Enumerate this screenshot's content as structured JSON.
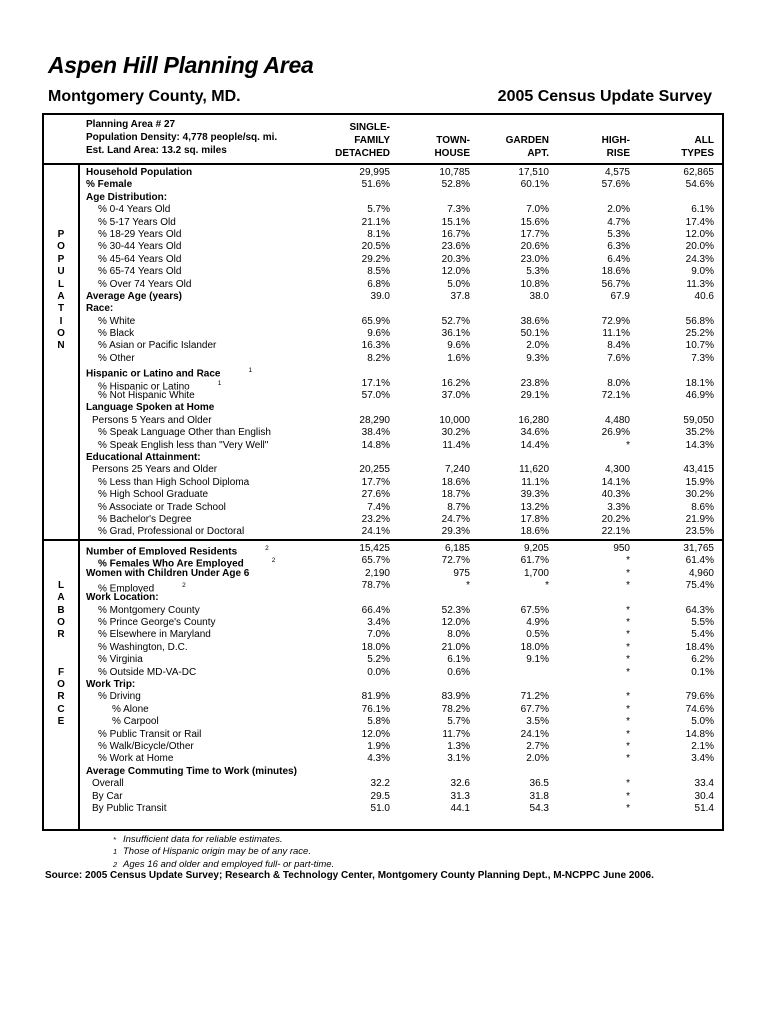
{
  "page": {
    "title": "Aspen Hill Planning Area",
    "region": "Montgomery County, MD.",
    "survey": "2005 Census Update Survey"
  },
  "table": {
    "info": [
      "Planning Area # 27",
      "Population Density: 4,778 people/sq. mi.",
      "Est. Land Area: 13.2 sq. miles"
    ],
    "columns": [
      "SINGLE-\nFAMILY\nDETACHED",
      "TOWN-\nHOUSE",
      "GARDEN\nAPT.",
      "HIGH-\nRISE",
      "ALL\nTYPES"
    ],
    "sections": [
      {
        "name": "POPULATION",
        "rows": [
          {
            "letter": "",
            "label": "Household Population",
            "b": true,
            "ind": 0,
            "sup": "",
            "values": [
              "29,995",
              "10,785",
              "17,510",
              "4,575",
              "62,865"
            ]
          },
          {
            "letter": "",
            "label": "% Female",
            "b": true,
            "ind": 0,
            "sup": "",
            "values": [
              "51.6%",
              "52.8%",
              "60.1%",
              "57.6%",
              "54.6%"
            ]
          },
          {
            "letter": "",
            "label": "Age Distribution:",
            "b": true,
            "ind": 0,
            "sup": "",
            "values": [
              "",
              "",
              "",
              "",
              ""
            ]
          },
          {
            "letter": "",
            "label": "% 0-4 Years Old",
            "b": false,
            "ind": 2,
            "sup": "",
            "values": [
              "5.7%",
              "7.3%",
              "7.0%",
              "2.0%",
              "6.1%"
            ]
          },
          {
            "letter": "",
            "label": "% 5-17 Years Old",
            "b": false,
            "ind": 2,
            "sup": "",
            "values": [
              "21.1%",
              "15.1%",
              "15.6%",
              "4.7%",
              "17.4%"
            ]
          },
          {
            "letter": "P",
            "label": "% 18-29 Years Old",
            "b": false,
            "ind": 2,
            "sup": "",
            "values": [
              "8.1%",
              "16.7%",
              "17.7%",
              "5.3%",
              "12.0%"
            ]
          },
          {
            "letter": "O",
            "label": "% 30-44 Years Old",
            "b": false,
            "ind": 2,
            "sup": "",
            "values": [
              "20.5%",
              "23.6%",
              "20.6%",
              "6.3%",
              "20.0%"
            ]
          },
          {
            "letter": "P",
            "label": "% 45-64 Years Old",
            "b": false,
            "ind": 2,
            "sup": "",
            "values": [
              "29.2%",
              "20.3%",
              "23.0%",
              "6.4%",
              "24.3%"
            ]
          },
          {
            "letter": "U",
            "label": "% 65-74 Years Old",
            "b": false,
            "ind": 2,
            "sup": "",
            "values": [
              "8.5%",
              "12.0%",
              "5.3%",
              "18.6%",
              "9.0%"
            ]
          },
          {
            "letter": "L",
            "label": "% Over 74 Years Old",
            "b": false,
            "ind": 2,
            "sup": "",
            "values": [
              "6.8%",
              "5.0%",
              "10.8%",
              "56.7%",
              "11.3%"
            ]
          },
          {
            "letter": "A",
            "label": "Average Age (years)",
            "b": true,
            "ind": 0,
            "sup": "",
            "values": [
              "39.0",
              "37.8",
              "38.0",
              "67.9",
              "40.6"
            ]
          },
          {
            "letter": "T",
            "label": "Race:",
            "b": true,
            "ind": 0,
            "sup": "",
            "values": [
              "",
              "",
              "",
              "",
              ""
            ]
          },
          {
            "letter": "I",
            "label": "% White",
            "b": false,
            "ind": 2,
            "sup": "",
            "values": [
              "65.9%",
              "52.7%",
              "38.6%",
              "72.9%",
              "56.8%"
            ]
          },
          {
            "letter": "O",
            "label": "% Black",
            "b": false,
            "ind": 2,
            "sup": "",
            "values": [
              "9.6%",
              "36.1%",
              "50.1%",
              "11.1%",
              "25.2%"
            ]
          },
          {
            "letter": "N",
            "label": "% Asian or Pacific Islander",
            "b": false,
            "ind": 2,
            "sup": "",
            "values": [
              "16.3%",
              "9.6%",
              "2.0%",
              "8.4%",
              "10.7%"
            ]
          },
          {
            "letter": "",
            "label": "% Other",
            "b": false,
            "ind": 2,
            "sup": "",
            "values": [
              "8.2%",
              "1.6%",
              "9.3%",
              "7.6%",
              "7.3%"
            ]
          },
          {
            "letter": "",
            "label": "Hispanic or Latino and Race",
            "b": true,
            "ind": 0,
            "sup": "1",
            "values": [
              "",
              "",
              "",
              "",
              ""
            ]
          },
          {
            "letter": "",
            "label": "% Hispanic or Latino",
            "b": false,
            "ind": 2,
            "sup": "1",
            "values": [
              "17.1%",
              "16.2%",
              "23.8%",
              "8.0%",
              "18.1%"
            ]
          },
          {
            "letter": "",
            "label": "% Not Hispanic White",
            "b": false,
            "ind": 2,
            "sup": "",
            "values": [
              "57.0%",
              "37.0%",
              "29.1%",
              "72.1%",
              "46.9%"
            ]
          },
          {
            "letter": "",
            "label": "Language Spoken at Home",
            "b": true,
            "ind": 0,
            "sup": "",
            "values": [
              "",
              "",
              "",
              "",
              ""
            ]
          },
          {
            "letter": "",
            "label": "Persons 5 Years and Older",
            "b": false,
            "ind": 1,
            "sup": "",
            "values": [
              "28,290",
              "10,000",
              "16,280",
              "4,480",
              "59,050"
            ]
          },
          {
            "letter": "",
            "label": "% Speak Language Other than English",
            "b": false,
            "ind": 2,
            "sup": "",
            "values": [
              "38.4%",
              "30.2%",
              "34.6%",
              "26.9%",
              "35.2%"
            ]
          },
          {
            "letter": "",
            "label": "% Speak English less than \"Very Well\"",
            "b": false,
            "ind": 2,
            "sup": "",
            "values": [
              "14.8%",
              "11.4%",
              "14.4%",
              "*",
              "14.3%"
            ]
          },
          {
            "letter": "",
            "label": "Educational Attainment:",
            "b": true,
            "ind": 0,
            "sup": "",
            "values": [
              "",
              "",
              "",
              "",
              ""
            ]
          },
          {
            "letter": "",
            "label": "Persons 25 Years and Older",
            "b": false,
            "ind": 1,
            "sup": "",
            "values": [
              "20,255",
              "7,240",
              "11,620",
              "4,300",
              "43,415"
            ]
          },
          {
            "letter": "",
            "label": "% Less than High School Diploma",
            "b": false,
            "ind": 2,
            "sup": "",
            "values": [
              "17.7%",
              "18.6%",
              "11.1%",
              "14.1%",
              "15.9%"
            ]
          },
          {
            "letter": "",
            "label": "% High School Graduate",
            "b": false,
            "ind": 2,
            "sup": "",
            "values": [
              "27.6%",
              "18.7%",
              "39.3%",
              "40.3%",
              "30.2%"
            ]
          },
          {
            "letter": "",
            "label": "% Associate or Trade School",
            "b": false,
            "ind": 2,
            "sup": "",
            "values": [
              "7.4%",
              "8.7%",
              "13.2%",
              "3.3%",
              "8.6%"
            ]
          },
          {
            "letter": "",
            "label": "% Bachelor's Degree",
            "b": false,
            "ind": 2,
            "sup": "",
            "values": [
              "23.2%",
              "24.7%",
              "17.8%",
              "20.2%",
              "21.9%"
            ]
          },
          {
            "letter": "",
            "label": "% Grad, Professional or Doctoral",
            "b": false,
            "ind": 2,
            "sup": "",
            "values": [
              "24.1%",
              "29.3%",
              "18.6%",
              "22.1%",
              "23.5%"
            ]
          }
        ]
      },
      {
        "name": "LABOR FORCE",
        "rows": [
          {
            "letter": "",
            "label": "Number of Employed Residents",
            "b": true,
            "ind": 0,
            "sup": "2",
            "values": [
              "15,425",
              "6,185",
              "9,205",
              "950",
              "31,765"
            ]
          },
          {
            "letter": "",
            "label": "% Females Who Are Employed",
            "b": true,
            "ind": 2,
            "sup": "2",
            "values": [
              "65.7%",
              "72.7%",
              "61.7%",
              "*",
              "61.4%"
            ]
          },
          {
            "letter": "",
            "label": "Women with Children Under Age 6",
            "b": true,
            "ind": 0,
            "sup": "",
            "values": [
              "2,190",
              "975",
              "1,700",
              "*",
              "4,960"
            ]
          },
          {
            "letter": "L",
            "label": "% Employed",
            "b": false,
            "ind": 2,
            "sup": "2",
            "values": [
              "78.7%",
              "*",
              "*",
              "*",
              "75.4%"
            ]
          },
          {
            "letter": "A",
            "label": "Work Location:",
            "b": true,
            "ind": 0,
            "sup": "",
            "values": [
              "",
              "",
              "",
              "",
              ""
            ]
          },
          {
            "letter": "B",
            "label": "% Montgomery County",
            "b": false,
            "ind": 2,
            "sup": "",
            "values": [
              "66.4%",
              "52.3%",
              "67.5%",
              "*",
              "64.3%"
            ]
          },
          {
            "letter": "O",
            "label": "% Prince George's County",
            "b": false,
            "ind": 2,
            "sup": "",
            "values": [
              "3.4%",
              "12.0%",
              "4.9%",
              "*",
              "5.5%"
            ]
          },
          {
            "letter": "R",
            "label": "% Elsewhere in Maryland",
            "b": false,
            "ind": 2,
            "sup": "",
            "values": [
              "7.0%",
              "8.0%",
              "0.5%",
              "*",
              "5.4%"
            ]
          },
          {
            "letter": "",
            "label": "% Washington, D.C.",
            "b": false,
            "ind": 2,
            "sup": "",
            "values": [
              "18.0%",
              "21.0%",
              "18.0%",
              "*",
              "18.4%"
            ]
          },
          {
            "letter": "",
            "label": "% Virginia",
            "b": false,
            "ind": 2,
            "sup": "",
            "values": [
              "5.2%",
              "6.1%",
              "9.1%",
              "*",
              "6.2%"
            ]
          },
          {
            "letter": "F",
            "label": "% Outside MD-VA-DC",
            "b": false,
            "ind": 2,
            "sup": "",
            "values": [
              "0.0%",
              "0.6%",
              "",
              "*",
              "0.1%"
            ]
          },
          {
            "letter": "O",
            "label": "Work Trip:",
            "b": true,
            "ind": 0,
            "sup": "",
            "values": [
              "",
              "",
              "",
              "",
              ""
            ]
          },
          {
            "letter": "R",
            "label": "% Driving",
            "b": false,
            "ind": 2,
            "sup": "",
            "values": [
              "81.9%",
              "83.9%",
              "71.2%",
              "*",
              "79.6%"
            ]
          },
          {
            "letter": "C",
            "label": "% Alone",
            "b": false,
            "ind": 3,
            "sup": "",
            "values": [
              "76.1%",
              "78.2%",
              "67.7%",
              "*",
              "74.6%"
            ]
          },
          {
            "letter": "E",
            "label": "% Carpool",
            "b": false,
            "ind": 3,
            "sup": "",
            "values": [
              "5.8%",
              "5.7%",
              "3.5%",
              "*",
              "5.0%"
            ]
          },
          {
            "letter": "",
            "label": "% Public Transit or Rail",
            "b": false,
            "ind": 2,
            "sup": "",
            "values": [
              "12.0%",
              "11.7%",
              "24.1%",
              "*",
              "14.8%"
            ]
          },
          {
            "letter": "",
            "label": "% Walk/Bicycle/Other",
            "b": false,
            "ind": 2,
            "sup": "",
            "values": [
              "1.9%",
              "1.3%",
              "2.7%",
              "*",
              "2.1%"
            ]
          },
          {
            "letter": "",
            "label": "% Work at Home",
            "b": false,
            "ind": 2,
            "sup": "",
            "values": [
              "4.3%",
              "3.1%",
              "2.0%",
              "*",
              "3.4%"
            ]
          },
          {
            "letter": "",
            "label": "Average Commuting Time to Work (minutes)",
            "b": true,
            "ind": 0,
            "sup": "",
            "values": [
              "",
              "",
              "",
              "",
              ""
            ]
          },
          {
            "letter": "",
            "label": "Overall",
            "b": false,
            "ind": 1,
            "sup": "",
            "values": [
              "32.2",
              "32.6",
              "36.5",
              "*",
              "33.4"
            ]
          },
          {
            "letter": "",
            "label": "By Car",
            "b": false,
            "ind": 1,
            "sup": "",
            "values": [
              "29.5",
              "31.3",
              "31.8",
              "*",
              "30.4"
            ]
          },
          {
            "letter": "",
            "label": "By Public Transit",
            "b": false,
            "ind": 1,
            "sup": "",
            "values": [
              "51.0",
              "44.1",
              "54.3",
              "*",
              "51.4"
            ]
          }
        ]
      }
    ]
  },
  "footnotes": [
    {
      "marker": "*",
      "text": "Insufficient data for reliable estimates."
    },
    {
      "marker": "1",
      "text": "Those of Hispanic origin may be of any race."
    },
    {
      "marker": "2",
      "text": "Ages 16 and older and employed full- or part-time."
    }
  ],
  "source": "Source:  2005 Census Update Survey; Research & Technology Center,  Montgomery County Planning Dept., M-NCPPC June 2006."
}
